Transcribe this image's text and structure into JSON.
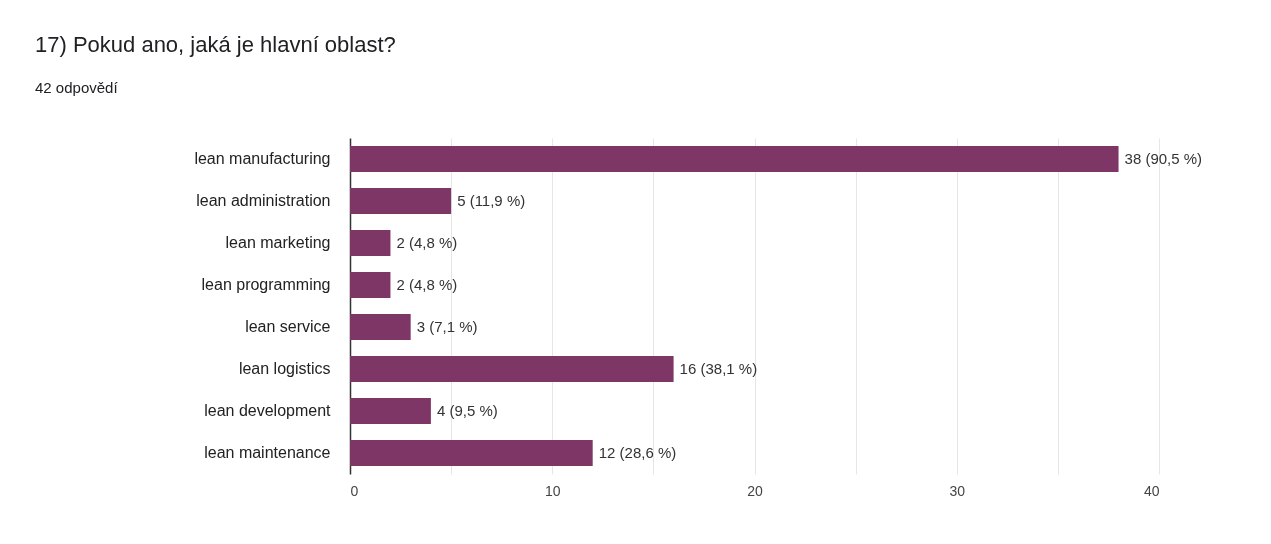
{
  "chart_data": {
    "type": "bar",
    "orientation": "horizontal",
    "title": "17) Pokud ano, jaká je hlavní oblast?",
    "subtitle": "42 odpovědí",
    "categories": [
      "lean manufacturing",
      "lean administration",
      "lean marketing",
      "lean programming",
      "lean service",
      "lean logistics",
      "lean development",
      "lean maintenance"
    ],
    "values": [
      38,
      5,
      2,
      2,
      3,
      16,
      4,
      12
    ],
    "value_labels": [
      "38 (90,5 %)",
      "5 (11,9 %)",
      "2 (4,8 %)",
      "2 (4,8 %)",
      "3 (7,1 %)",
      "16 (38,1 %)",
      "4 (9,5 %)",
      "12 (28,6 %)"
    ],
    "color": "#7e3667",
    "xlim": [
      0,
      40
    ],
    "xticks": [
      0,
      {
        "value": 5,
        "label": null
      },
      10,
      {
        "value": 15,
        "label": null
      },
      20,
      {
        "value": 25,
        "label": null
      },
      30,
      {
        "value": 35,
        "label": null
      },
      40
    ],
    "grid": "x"
  }
}
